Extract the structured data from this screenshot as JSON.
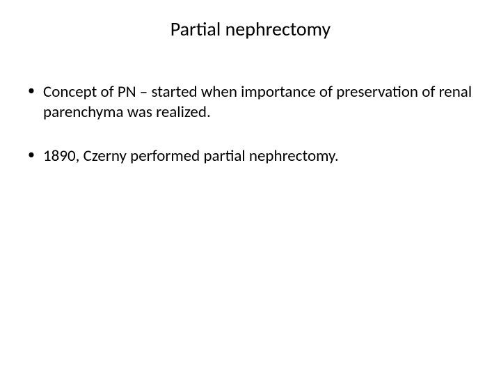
{
  "slide": {
    "title": "Partial nephrectomy",
    "bullets": [
      "Concept of PN – started when importance of preservation of renal parenchyma was realized.",
      " 1890, Czerny performed partial nephrectomy."
    ]
  },
  "style": {
    "background_color": "#ffffff",
    "text_color": "#000000",
    "title_fontsize": 28,
    "body_fontsize": 23,
    "font_family": "Calibri"
  }
}
